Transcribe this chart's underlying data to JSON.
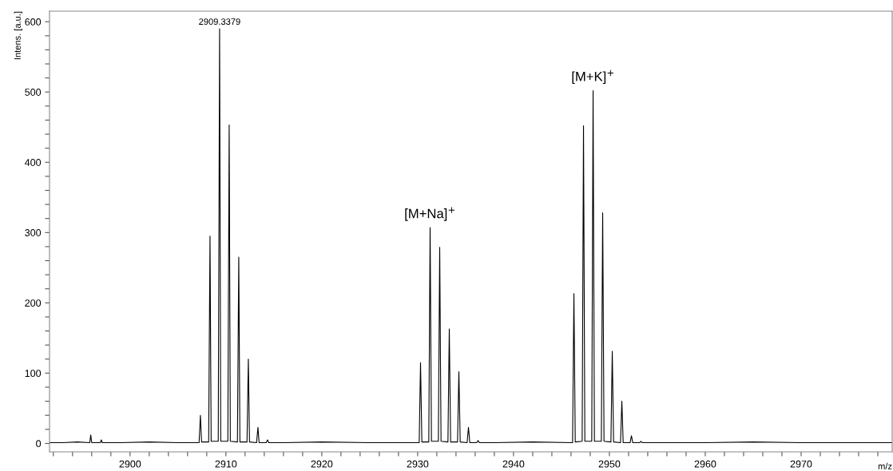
{
  "chart_data": {
    "type": "line",
    "xlabel": "m/z",
    "ylabel": "Intens. [a.u.]",
    "x": [
      2891.6,
      2893.0,
      2894.5,
      2895.8,
      2895.9,
      2896.0,
      2896.9,
      2897.0,
      2897.1,
      2899.0,
      2902.0,
      2905.0,
      2907.2,
      2907.34,
      2907.46,
      2908.2,
      2908.34,
      2908.46,
      2909.2,
      2909.34,
      2909.46,
      2910.2,
      2910.34,
      2910.46,
      2911.2,
      2911.34,
      2911.46,
      2912.2,
      2912.34,
      2912.46,
      2913.2,
      2913.34,
      2913.46,
      2914.2,
      2914.34,
      2914.46,
      2916.0,
      2920.0,
      2925.0,
      2930.16,
      2930.3,
      2930.44,
      2931.16,
      2931.3,
      2931.44,
      2932.16,
      2932.3,
      2932.44,
      2933.16,
      2933.3,
      2933.44,
      2934.16,
      2934.3,
      2934.44,
      2935.16,
      2935.3,
      2935.44,
      2936.16,
      2936.3,
      2936.44,
      2938.0,
      2942.0,
      2946.16,
      2946.3,
      2946.44,
      2947.16,
      2947.3,
      2947.44,
      2948.16,
      2948.3,
      2948.44,
      2949.16,
      2949.3,
      2949.44,
      2950.16,
      2950.3,
      2950.44,
      2951.16,
      2951.3,
      2951.44,
      2952.16,
      2952.3,
      2952.44,
      2953.16,
      2953.3,
      2953.44,
      2956.0,
      2960.0,
      2965.0,
      2970.0,
      2975.0,
      2979.5
    ],
    "values": [
      1,
      1,
      2,
      1,
      12,
      1,
      1,
      5,
      1,
      1,
      2,
      1,
      1,
      40,
      2,
      2,
      295,
      3,
      3,
      590,
      3,
      3,
      453,
      3,
      2,
      265,
      2,
      2,
      120,
      2,
      1,
      23,
      1,
      1,
      5,
      1,
      1,
      2,
      1,
      1,
      115,
      2,
      2,
      307,
      3,
      3,
      279,
      3,
      2,
      163,
      2,
      2,
      102,
      2,
      1,
      23,
      1,
      1,
      4,
      1,
      1,
      2,
      1,
      213,
      2,
      3,
      452,
      3,
      3,
      502,
      3,
      3,
      328,
      3,
      2,
      131,
      2,
      1,
      60,
      1,
      1,
      11,
      1,
      1,
      3,
      1,
      1,
      1,
      2,
      1,
      1,
      1
    ],
    "color": "#000000",
    "xlim": [
      2891.6,
      2979.5
    ],
    "xticks": [
      {
        "value": 2892,
        "label": null
      },
      {
        "value": 2894,
        "label": null
      },
      {
        "value": 2896,
        "label": null
      },
      {
        "value": 2898,
        "label": null
      },
      2900,
      {
        "value": 2902,
        "label": null
      },
      {
        "value": 2904,
        "label": null
      },
      {
        "value": 2906,
        "label": null
      },
      {
        "value": 2908,
        "label": null
      },
      2910,
      {
        "value": 2912,
        "label": null
      },
      {
        "value": 2914,
        "label": null
      },
      {
        "value": 2916,
        "label": null
      },
      {
        "value": 2918,
        "label": null
      },
      2920,
      {
        "value": 2922,
        "label": null
      },
      {
        "value": 2924,
        "label": null
      },
      {
        "value": 2926,
        "label": null
      },
      {
        "value": 2928,
        "label": null
      },
      2930,
      {
        "value": 2932,
        "label": null
      },
      {
        "value": 2934,
        "label": null
      },
      {
        "value": 2936,
        "label": null
      },
      {
        "value": 2938,
        "label": null
      },
      2940,
      {
        "value": 2942,
        "label": null
      },
      {
        "value": 2944,
        "label": null
      },
      {
        "value": 2946,
        "label": null
      },
      {
        "value": 2948,
        "label": null
      },
      2950,
      {
        "value": 2952,
        "label": null
      },
      {
        "value": 2954,
        "label": null
      },
      {
        "value": 2956,
        "label": null
      },
      {
        "value": 2958,
        "label": null
      },
      2960,
      {
        "value": 2962,
        "label": null
      },
      {
        "value": 2964,
        "label": null
      },
      {
        "value": 2966,
        "label": null
      },
      {
        "value": 2968,
        "label": null
      },
      2970,
      {
        "value": 2972,
        "label": null
      },
      {
        "value": 2974,
        "label": null
      },
      {
        "value": 2976,
        "label": null
      },
      {
        "value": 2978,
        "label": null
      }
    ],
    "ylim": [
      -12,
      615
    ],
    "yticks": [
      0,
      {
        "value": 20,
        "label": null
      },
      {
        "value": 40,
        "label": null
      },
      {
        "value": 60,
        "label": null
      },
      {
        "value": 80,
        "label": null
      },
      100,
      {
        "value": 120,
        "label": null
      },
      {
        "value": 140,
        "label": null
      },
      {
        "value": 160,
        "label": null
      },
      {
        "value": 180,
        "label": null
      },
      200,
      {
        "value": 220,
        "label": null
      },
      {
        "value": 240,
        "label": null
      },
      {
        "value": 260,
        "label": null
      },
      {
        "value": 280,
        "label": null
      },
      300,
      {
        "value": 320,
        "label": null
      },
      {
        "value": 340,
        "label": null
      },
      {
        "value": 360,
        "label": null
      },
      {
        "value": 380,
        "label": null
      },
      400,
      {
        "value": 420,
        "label": null
      },
      {
        "value": 440,
        "label": null
      },
      {
        "value": 460,
        "label": null
      },
      {
        "value": 480,
        "label": null
      },
      500,
      {
        "value": 520,
        "label": null
      },
      {
        "value": 540,
        "label": null
      },
      {
        "value": 560,
        "label": null
      },
      {
        "value": 580,
        "label": null
      },
      600
    ],
    "annotations": [
      {
        "text": "2909.3379",
        "x": 2909.34,
        "y": 590
      },
      {
        "text": "[M+Na]$^{+}$",
        "x": 2931.3,
        "y": 307
      },
      {
        "text": "[M+K]$^{+}$",
        "x": 2948.3,
        "y": 502
      }
    ],
    "grid": false,
    "legend": false,
    "marker": "none",
    "line_style": "solid"
  }
}
